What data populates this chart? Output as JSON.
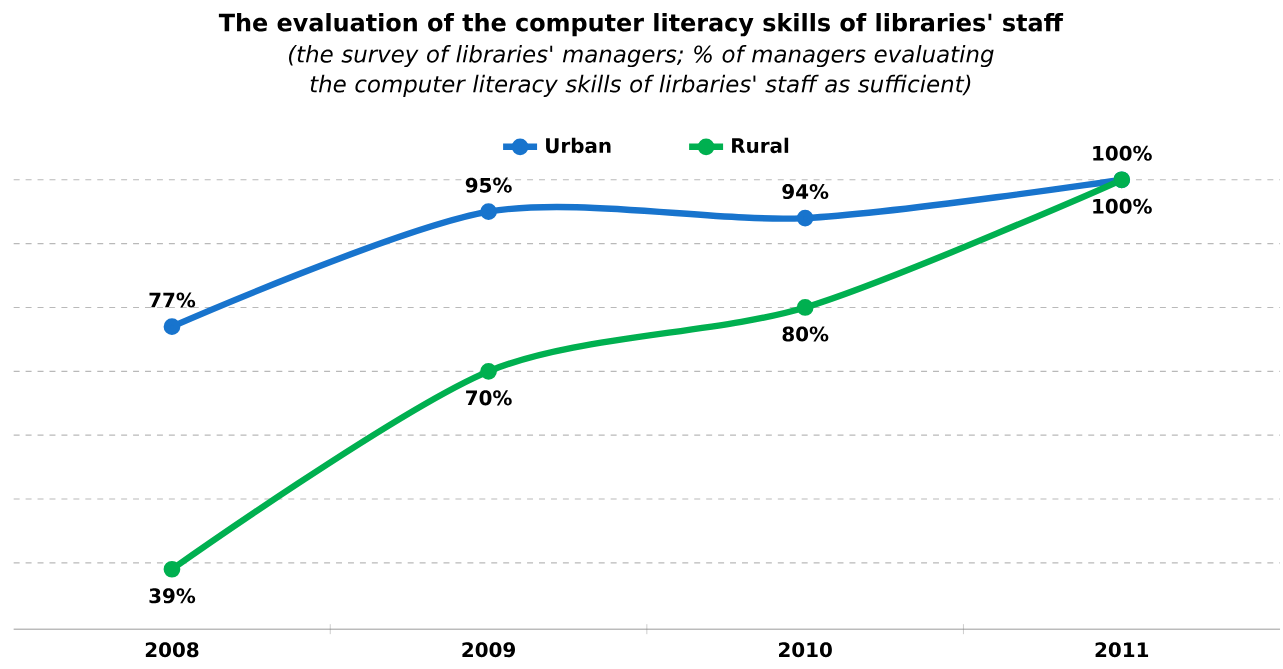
{
  "chart_data": {
    "type": "line",
    "title": "The evaluation of the computer literacy skills of libraries' staff",
    "subtitle": "(the survey of libraries' managers; % of managers evaluating the computer literacy skills of lirbaries' staff as sufficient)",
    "categories": [
      "2008",
      "2009",
      "2010",
      "2011"
    ],
    "series": [
      {
        "name": "Urban",
        "color": "#1874cd",
        "values": [
          77,
          95,
          94,
          100
        ],
        "value_labels": [
          "77%",
          "95%",
          "94%",
          "100%"
        ]
      },
      {
        "name": "Rural",
        "color": "#00b050",
        "values": [
          39,
          70,
          80,
          100
        ],
        "value_labels": [
          "39%",
          "70%",
          "80%",
          "100%"
        ]
      }
    ],
    "grid": "y",
    "legend": "top",
    "marker": "circle",
    "line_style": "solid",
    "tick_labels": "x"
  }
}
